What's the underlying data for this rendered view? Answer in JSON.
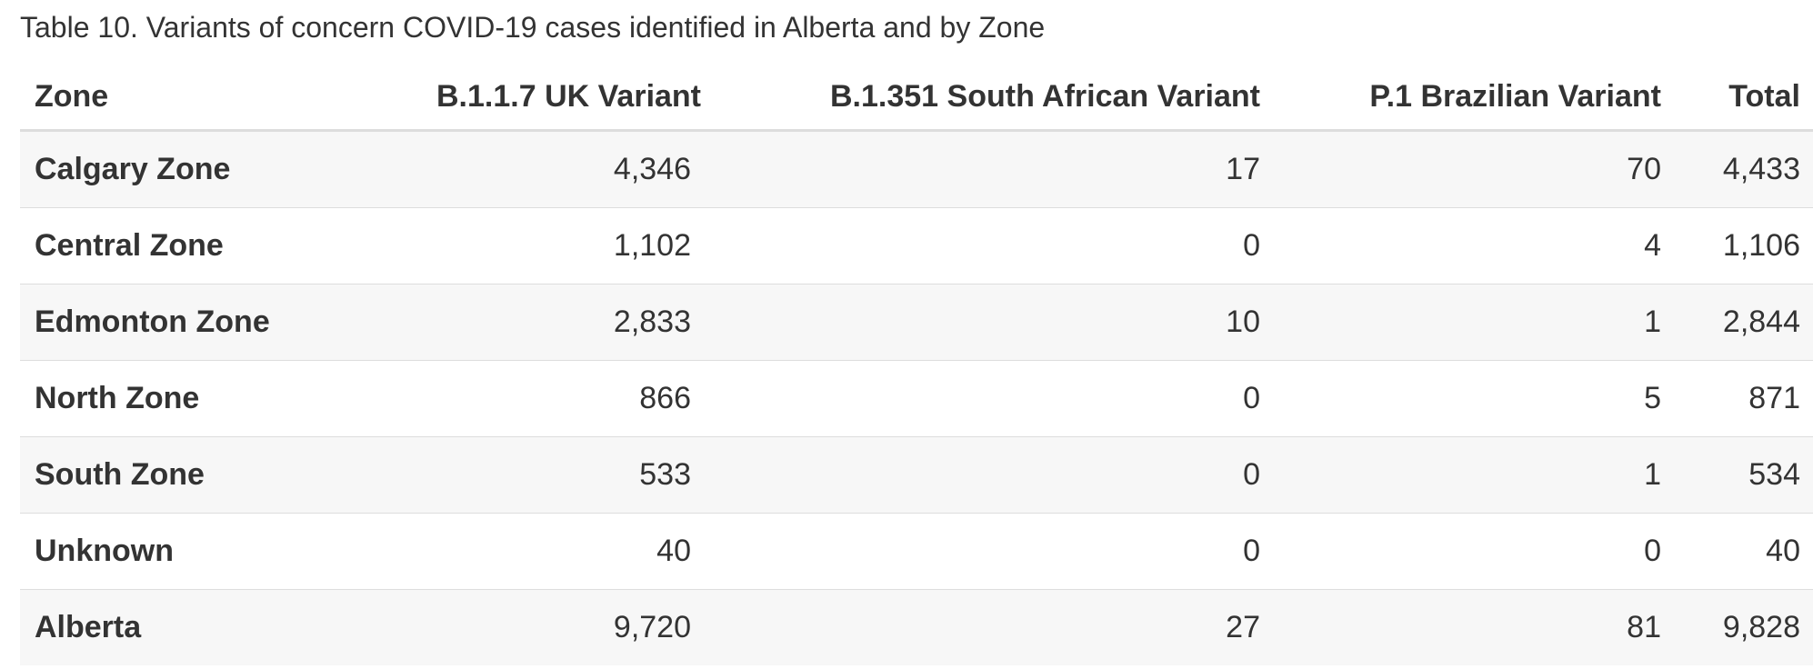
{
  "caption": "Table 10. Variants of concern COVID-19 cases identified in Alberta and by Zone",
  "table": {
    "header": [
      "Zone",
      "B.1.1.7 UK Variant",
      "B.1.351 South African Variant",
      "P.1 Brazilian Variant",
      "Total"
    ],
    "rows": [
      [
        "Calgary Zone",
        "4,346",
        "17",
        "70",
        "4,433"
      ],
      [
        "Central Zone",
        "1,102",
        "0",
        "4",
        "1,106"
      ],
      [
        "Edmonton Zone",
        "2,833",
        "10",
        "1",
        "2,844"
      ],
      [
        "North Zone",
        "866",
        "0",
        "5",
        "871"
      ],
      [
        "South Zone",
        "533",
        "0",
        "1",
        "534"
      ],
      [
        "Unknown",
        "40",
        "0",
        "0",
        "40"
      ],
      [
        "Alberta",
        "9,720",
        "27",
        "81",
        "9,828"
      ]
    ]
  }
}
